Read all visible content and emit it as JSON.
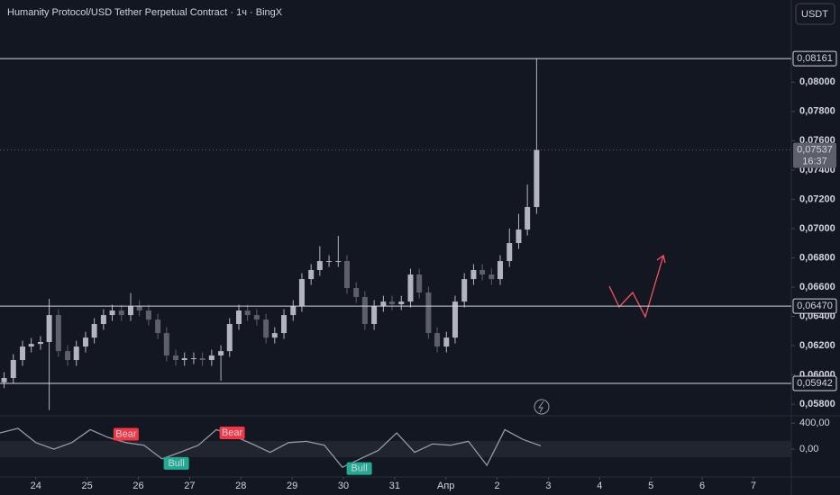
{
  "chart_data": {
    "type": "candlestick",
    "title": "Humanity Protocol/USD Tether Perpetual Contract · 1ч · BingX",
    "currency": "USDT",
    "x": [
      -0.62,
      -0.44,
      -0.26,
      -0.09,
      0.09,
      0.26,
      0.44,
      0.62,
      0.79,
      0.97,
      1.14,
      1.32,
      1.49,
      1.67,
      1.85,
      2.02,
      2.2,
      2.38,
      2.55,
      2.73,
      2.9,
      3.08,
      3.25,
      3.43,
      3.61,
      3.78,
      3.96,
      4.13,
      4.31,
      4.49,
      4.66,
      4.84,
      5.02,
      5.19,
      5.37,
      5.54,
      5.72,
      5.9,
      6.07,
      6.25,
      6.42,
      6.6,
      6.78,
      6.95,
      7.13,
      7.31,
      7.48,
      7.66,
      7.83,
      8.01,
      8.18,
      8.36,
      8.54,
      8.71,
      8.89,
      9.06,
      9.24,
      9.42,
      9.59,
      9.77
    ],
    "open": [
      0.0595,
      0.05979,
      0.06102,
      0.06194,
      0.06212,
      0.06225,
      0.06409,
      0.06163,
      0.06102,
      0.06194,
      0.06255,
      0.06348,
      0.06409,
      0.0644,
      0.06409,
      0.06471,
      0.0644,
      0.06378,
      0.06286,
      0.06133,
      0.06102,
      0.06114,
      0.06114,
      0.06102,
      0.06133,
      0.06163,
      0.06348,
      0.0644,
      0.06409,
      0.06378,
      0.06255,
      0.06286,
      0.06409,
      0.06471,
      0.06655,
      0.06717,
      0.06778,
      0.06778,
      0.06778,
      0.06594,
      0.06532,
      0.06348,
      0.06471,
      0.06501,
      0.06483,
      0.06501,
      0.06686,
      0.06563,
      0.06286,
      0.06194,
      0.06255,
      0.06501,
      0.06655,
      0.06717,
      0.06686,
      0.06655,
      0.06778,
      0.06901,
      0.06993,
      0.07147
    ],
    "high": [
      0.06019,
      0.06142,
      0.06234,
      0.06252,
      0.06265,
      0.0652,
      0.06449,
      0.06203,
      0.06234,
      0.06295,
      0.06388,
      0.06449,
      0.0648,
      0.0648,
      0.0656,
      0.06511,
      0.0648,
      0.06418,
      0.06326,
      0.06173,
      0.06154,
      0.06154,
      0.06154,
      0.06173,
      0.06203,
      0.06388,
      0.0648,
      0.0648,
      0.06449,
      0.06418,
      0.06326,
      0.06449,
      0.06511,
      0.06695,
      0.06757,
      0.0688,
      0.06818,
      0.0695,
      0.06818,
      0.06634,
      0.06572,
      0.06511,
      0.06541,
      0.06541,
      0.06541,
      0.06726,
      0.06726,
      0.06603,
      0.06326,
      0.06295,
      0.06541,
      0.06695,
      0.06757,
      0.06757,
      0.06726,
      0.06818,
      0.07,
      0.071,
      0.073,
      0.08161
    ],
    "low": [
      0.0591,
      0.05939,
      0.06062,
      0.06154,
      0.06172,
      0.0576,
      0.06123,
      0.06062,
      0.06062,
      0.06154,
      0.06215,
      0.06308,
      0.06369,
      0.06369,
      0.06369,
      0.064,
      0.06338,
      0.06246,
      0.06093,
      0.06062,
      0.06062,
      0.06074,
      0.06062,
      0.06062,
      0.0596,
      0.06123,
      0.06308,
      0.06369,
      0.06338,
      0.06215,
      0.06215,
      0.06246,
      0.06369,
      0.06431,
      0.06615,
      0.06677,
      0.06738,
      0.06738,
      0.06554,
      0.06492,
      0.06308,
      0.06308,
      0.06431,
      0.06443,
      0.06443,
      0.06461,
      0.06523,
      0.06246,
      0.06154,
      0.06154,
      0.06215,
      0.06461,
      0.06615,
      0.06646,
      0.06615,
      0.06615,
      0.06738,
      0.06861,
      0.06953,
      0.071
    ],
    "close": [
      0.05979,
      0.06102,
      0.06194,
      0.06212,
      0.06225,
      0.06409,
      0.06163,
      0.06102,
      0.06194,
      0.06255,
      0.06348,
      0.06409,
      0.0644,
      0.06409,
      0.06471,
      0.0644,
      0.06378,
      0.06286,
      0.06133,
      0.06102,
      0.06114,
      0.06114,
      0.06102,
      0.06133,
      0.06163,
      0.06348,
      0.0644,
      0.06409,
      0.06378,
      0.06255,
      0.06286,
      0.06409,
      0.06471,
      0.06655,
      0.06717,
      0.06778,
      0.06778,
      0.06778,
      0.06594,
      0.06532,
      0.06348,
      0.06471,
      0.06501,
      0.06483,
      0.06501,
      0.06686,
      0.06563,
      0.06286,
      0.06194,
      0.06255,
      0.06501,
      0.06655,
      0.06717,
      0.06686,
      0.06655,
      0.06778,
      0.06901,
      0.06993,
      0.07147,
      0.07537
    ],
    "up_color": "#b2b5be",
    "down_color": "#5d606b",
    "xlim": [
      -0.7,
      14.74
    ],
    "xticks": [
      {
        "value": 0,
        "label": "24"
      },
      {
        "value": 1,
        "label": "25"
      },
      {
        "value": 2,
        "label": "26"
      },
      {
        "value": 3,
        "label": "27"
      },
      {
        "value": 4,
        "label": "28"
      },
      {
        "value": 5,
        "label": "29"
      },
      {
        "value": 6,
        "label": "30"
      },
      {
        "value": 7,
        "label": "31"
      },
      {
        "value": 8,
        "label": "Апр"
      },
      {
        "value": 9,
        "label": "2"
      },
      {
        "value": 10,
        "label": "3"
      },
      {
        "value": 11,
        "label": "4"
      },
      {
        "value": 12,
        "label": "5"
      },
      {
        "value": 13,
        "label": "6"
      },
      {
        "value": 14,
        "label": "7"
      }
    ],
    "ylim": [
      0.05721,
      0.08561
    ],
    "yticks": [
      {
        "value": 0.058,
        "label": "0,05800"
      },
      {
        "value": 0.06,
        "label": "0,06000"
      },
      {
        "value": 0.062,
        "label": "0,06200"
      },
      {
        "value": 0.064,
        "label": "0,06400"
      },
      {
        "value": 0.066,
        "label": "0,06600"
      },
      {
        "value": 0.068,
        "label": "0,06800"
      },
      {
        "value": 0.07,
        "label": "0,07000"
      },
      {
        "value": 0.072,
        "label": "0,07200"
      },
      {
        "value": 0.074,
        "label": "0,07400"
      },
      {
        "value": 0.076,
        "label": "0,07600"
      },
      {
        "value": 0.078,
        "label": "0,07800"
      },
      {
        "value": 0.08,
        "label": "0,08000"
      }
    ],
    "levels": [
      {
        "value": 0.08161,
        "label": "0,08161"
      },
      {
        "value": 0.0647,
        "label": "0,06470"
      },
      {
        "value": 0.05942,
        "label": "0,05942"
      }
    ],
    "last_price": {
      "value": 0.07537,
      "label": "0,07537"
    },
    "countdown": "16:37",
    "indicator": {
      "x": [
        -0.7,
        -0.35,
        0,
        0.35,
        0.7,
        1.06,
        1.41,
        1.76,
        2.11,
        2.46,
        2.81,
        3.17,
        3.52,
        3.87,
        4.22,
        4.57,
        4.93,
        5.28,
        5.63,
        5.98,
        6.33,
        6.68,
        7.04,
        7.39,
        7.74,
        8.09,
        8.44,
        8.8,
        9.15,
        9.5,
        9.85
      ],
      "values": [
        250,
        320,
        100,
        0,
        100,
        300,
        180,
        100,
        60,
        -150,
        -50,
        60,
        300,
        200,
        80,
        -50,
        100,
        120,
        60,
        -280,
        -150,
        -20,
        250,
        -50,
        80,
        60,
        120,
        -250,
        300,
        150,
        50
      ],
      "color": "#9598a1",
      "ylim": [
        -430,
        500
      ],
      "yticks": [
        {
          "value": 400,
          "label": "400,00"
        },
        {
          "value": 0,
          "label": "0,00"
        }
      ],
      "annotations": [
        {
          "text": "Bear",
          "x": 1.76,
          "y": 230,
          "color": "#f23645"
        },
        {
          "text": "Bull",
          "x": 2.74,
          "y": -220,
          "color": "#22ab94"
        },
        {
          "text": "Bear",
          "x": 3.83,
          "y": 250,
          "color": "#f23645"
        },
        {
          "text": "Bull",
          "x": 6.31,
          "y": -300,
          "color": "#22ab94"
        }
      ]
    }
  }
}
